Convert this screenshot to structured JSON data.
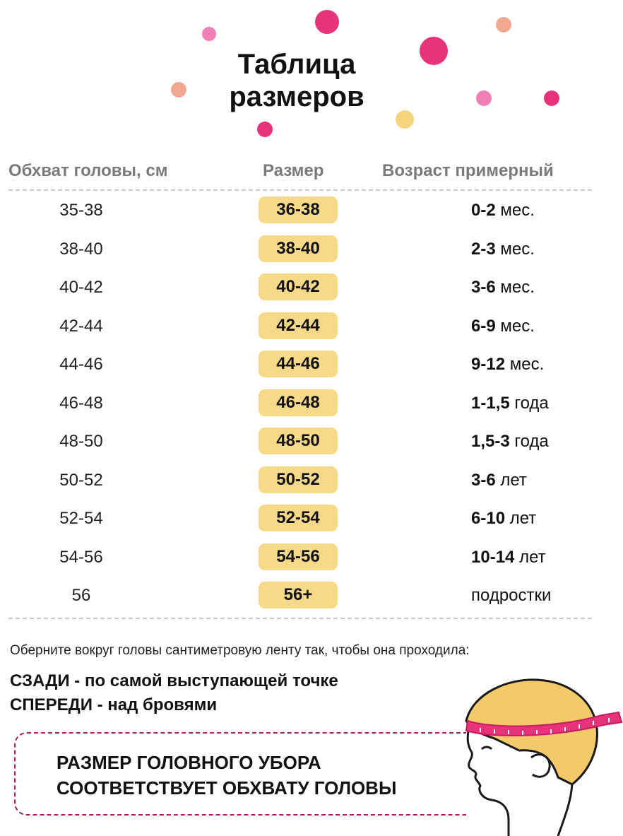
{
  "title": {
    "line1": "Таблица",
    "line2": "размеров"
  },
  "table": {
    "headers": [
      "Обхват головы, см",
      "Размер",
      "Возраст примерный"
    ],
    "rows": [
      {
        "girth": "35-38",
        "size": "36-38",
        "age_num": "0-2",
        "age_unit": "мес."
      },
      {
        "girth": "38-40",
        "size": "38-40",
        "age_num": "2-3",
        "age_unit": "мес."
      },
      {
        "girth": "40-42",
        "size": "40-42",
        "age_num": "3-6",
        "age_unit": "мес."
      },
      {
        "girth": "42-44",
        "size": "42-44",
        "age_num": "6-9",
        "age_unit": "мес."
      },
      {
        "girth": "44-46",
        "size": "44-46",
        "age_num": "9-12",
        "age_unit": "мес."
      },
      {
        "girth": "46-48",
        "size": "46-48",
        "age_num": "1-1,5",
        "age_unit": "года"
      },
      {
        "girth": "48-50",
        "size": "48-50",
        "age_num": "1,5-3",
        "age_unit": "года"
      },
      {
        "girth": "50-52",
        "size": "50-52",
        "age_num": "3-6",
        "age_unit": "лет"
      },
      {
        "girth": "52-54",
        "size": "52-54",
        "age_num": "6-10",
        "age_unit": "лет"
      },
      {
        "girth": "54-56",
        "size": "54-56",
        "age_num": "10-14",
        "age_unit": "лет"
      },
      {
        "girth": "56",
        "size": "56+",
        "age_num": "",
        "age_unit": "подростки"
      }
    ]
  },
  "instructions": {
    "intro": "Оберните вокруг головы сантиметровую ленту так, чтобы она проходила:",
    "back": "СЗАДИ - по самой выступающей точке",
    "front": "СПЕРЕДИ - над бровями"
  },
  "callout": {
    "line1": "РАЗМЕР ГОЛОВНОГО УБОРА",
    "line2": "СООТВЕТСТВУЕТ ОБХВАТУ ГОЛОВЫ"
  },
  "colors": {
    "size_badge": "#f8d98a",
    "accent_pink": "#e8337a",
    "dot_light_pink": "#ef7fb6",
    "dot_peach": "#f2a790",
    "dot_yellow": "#f6d47e",
    "callout_border": "#a2205f",
    "hair": "#f3c96a",
    "tape": "#e8337a"
  },
  "icons": {
    "decor": "confetti-dots",
    "illustration": "child-head-with-measuring-tape"
  }
}
